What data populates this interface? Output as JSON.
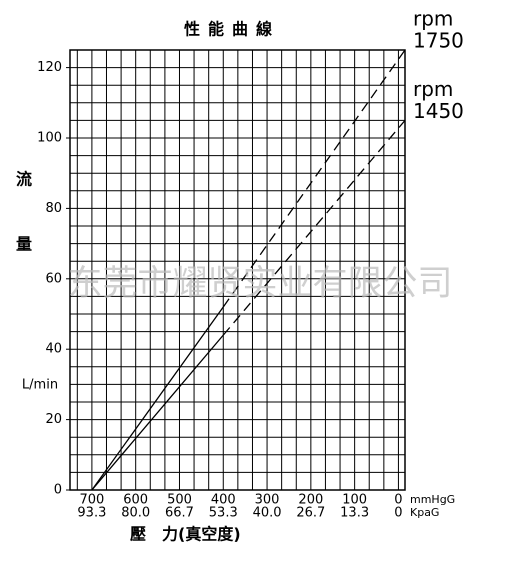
{
  "chart_data": {
    "type": "line",
    "title": "性能曲線",
    "y_label_top": "流",
    "y_label_bottom": "量",
    "y_unit": "L/min",
    "x_label": "壓　力(真空度)",
    "x_unit": "mmHgG",
    "x_unit2": "KpaG",
    "watermark": "东莞市耀贤实业有限公司",
    "xlim": [
      750,
      -15
    ],
    "ylim": [
      0,
      125
    ],
    "xticks": [
      700,
      600,
      500,
      400,
      300,
      200,
      100,
      0
    ],
    "xtick_labels2": [
      "93.3",
      "80.0",
      "66.7",
      "53.3",
      "40.0",
      "26.7",
      "13.3",
      "0"
    ],
    "yticks": [
      0,
      20,
      40,
      60,
      80,
      100,
      120
    ],
    "xgrid": [
      733.3,
      700,
      666.7,
      633.3,
      600,
      566.7,
      533.3,
      500,
      466.7,
      433.3,
      400,
      366.7,
      333.3,
      300,
      266.7,
      233.3,
      200,
      166.7,
      133.3,
      100,
      66.7,
      33.3,
      0
    ],
    "ygrid": [
      5,
      10,
      15,
      20,
      25,
      30,
      35,
      40,
      45,
      50,
      55,
      60,
      65,
      70,
      75,
      80,
      85,
      90,
      95,
      100,
      105,
      110,
      115,
      120
    ],
    "grid": true,
    "series": [
      {
        "name": "1750",
        "unit_label": "rpm",
        "color": "#000000",
        "x": [
          700,
          400,
          -15
        ],
        "values": [
          0,
          52,
          125
        ],
        "line_styles": [
          "solid",
          "dashed"
        ]
      },
      {
        "name": "1450",
        "unit_label": "rpm",
        "color": "#000000",
        "x": [
          700,
          400,
          -15
        ],
        "values": [
          0,
          44,
          105
        ],
        "line_styles": [
          "solid",
          "dashed"
        ]
      }
    ]
  }
}
